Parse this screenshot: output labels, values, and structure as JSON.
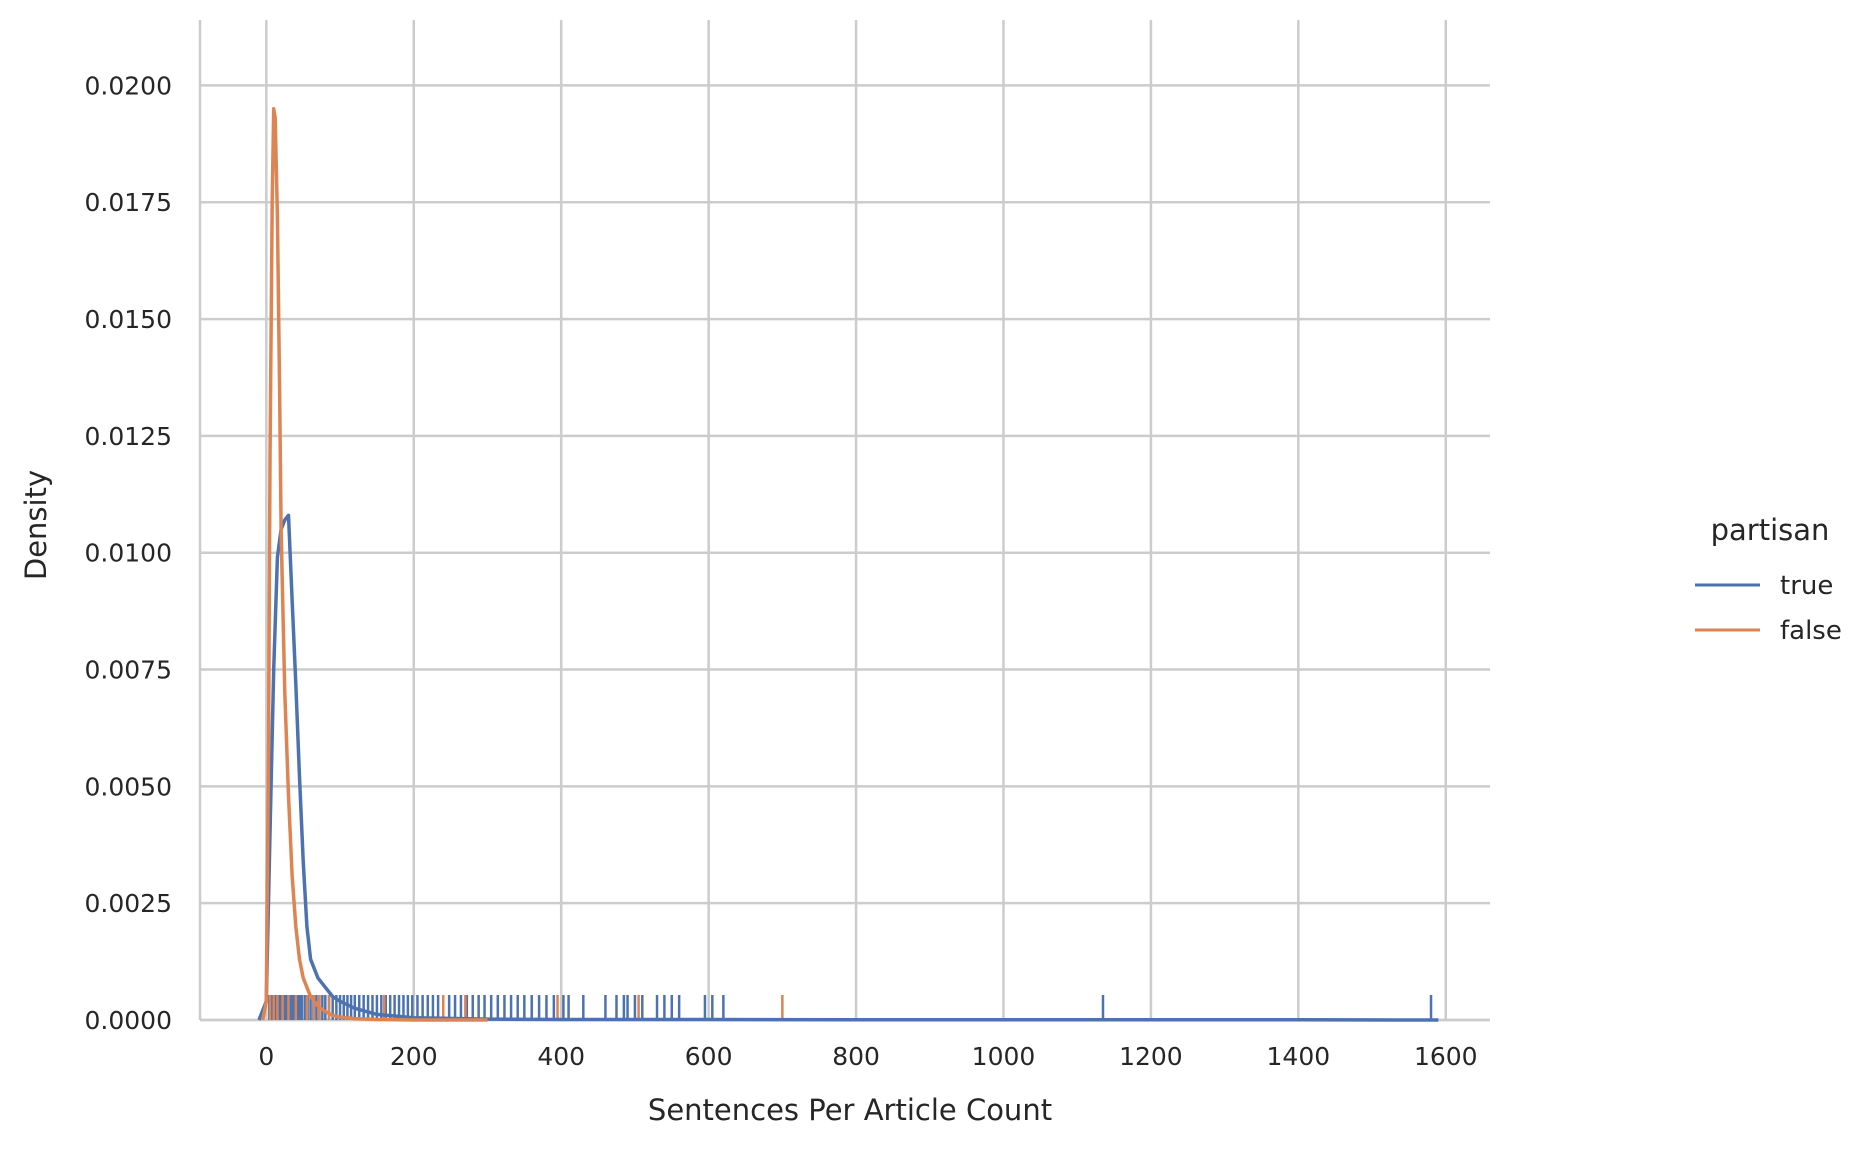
{
  "chart_data": {
    "type": "line",
    "title": "",
    "xlabel": "Sentences Per Article Count",
    "ylabel": "Density",
    "xlim": [
      -90,
      1660
    ],
    "ylim": [
      0,
      0.0214
    ],
    "xticks": [
      0,
      200,
      400,
      600,
      800,
      1000,
      1200,
      1400,
      1600
    ],
    "xtick_labels": [
      "0",
      "200",
      "400",
      "600",
      "800",
      "1000",
      "1200",
      "1400",
      "1600"
    ],
    "yticks": [
      0,
      0.0025,
      0.005,
      0.0075,
      0.01,
      0.0125,
      0.015,
      0.0175,
      0.02
    ],
    "ytick_labels": [
      "0.0000",
      "0.0025",
      "0.0050",
      "0.0075",
      "0.0100",
      "0.0125",
      "0.0150",
      "0.0175",
      "0.0200"
    ],
    "grid": true,
    "legend": {
      "title": "partisan",
      "position": "right"
    },
    "series": [
      {
        "name": "true",
        "color": "#4c72b0",
        "x": [
          -10,
          0,
          5,
          10,
          15,
          20,
          25,
          30,
          35,
          40,
          45,
          50,
          55,
          60,
          70,
          80,
          90,
          100,
          120,
          150,
          200,
          300,
          400,
          600,
          800,
          1000,
          1200,
          1400,
          1590
        ],
        "y": [
          0,
          0.0004,
          0.004,
          0.0075,
          0.0099,
          0.0105,
          0.0107,
          0.0108,
          0.009,
          0.0072,
          0.0052,
          0.0034,
          0.002,
          0.0013,
          0.0009,
          0.0007,
          0.0005,
          0.0004,
          0.00025,
          0.00012,
          5e-05,
          2e-05,
          1e-05,
          1e-05,
          5e-06,
          5e-06,
          5e-06,
          5e-06,
          0
        ],
        "rug": [
          4,
          6,
          9,
          11,
          13,
          15,
          17,
          19,
          21,
          23,
          26,
          28,
          30,
          33,
          36,
          39,
          42,
          45,
          48,
          52,
          56,
          60,
          64,
          68,
          72,
          76,
          80,
          85,
          90,
          95,
          100,
          105,
          110,
          115,
          120,
          126,
          132,
          138,
          144,
          150,
          156,
          162,
          168,
          174,
          180,
          186,
          192,
          198,
          205,
          212,
          219,
          226,
          233,
          240,
          248,
          256,
          264,
          272,
          280,
          288,
          296,
          305,
          314,
          323,
          332,
          341,
          350,
          360,
          370,
          380,
          390,
          403,
          410,
          430,
          460,
          475,
          485,
          490,
          500,
          510,
          530,
          540,
          550,
          560,
          595,
          605,
          620,
          1135,
          1580
        ]
      },
      {
        "name": "false",
        "color": "#dd8452",
        "x": [
          -5,
          0,
          3,
          5,
          8,
          10,
          12,
          15,
          18,
          20,
          25,
          30,
          35,
          40,
          45,
          50,
          55,
          60,
          70,
          80,
          90,
          100,
          120,
          150,
          200,
          300
        ],
        "y": [
          0,
          0.0004,
          0.006,
          0.012,
          0.0175,
          0.0195,
          0.0193,
          0.0172,
          0.0135,
          0.0105,
          0.007,
          0.0048,
          0.0031,
          0.002,
          0.0013,
          0.0009,
          0.0007,
          0.0005,
          0.0003,
          0.00018,
          0.0001,
          6e-05,
          3e-05,
          1e-05,
          0,
          0
        ],
        "rug": [
          5,
          10,
          15,
          22,
          30,
          40,
          55,
          65,
          72,
          85,
          160,
          240,
          270,
          395,
          505,
          700
        ]
      }
    ]
  }
}
